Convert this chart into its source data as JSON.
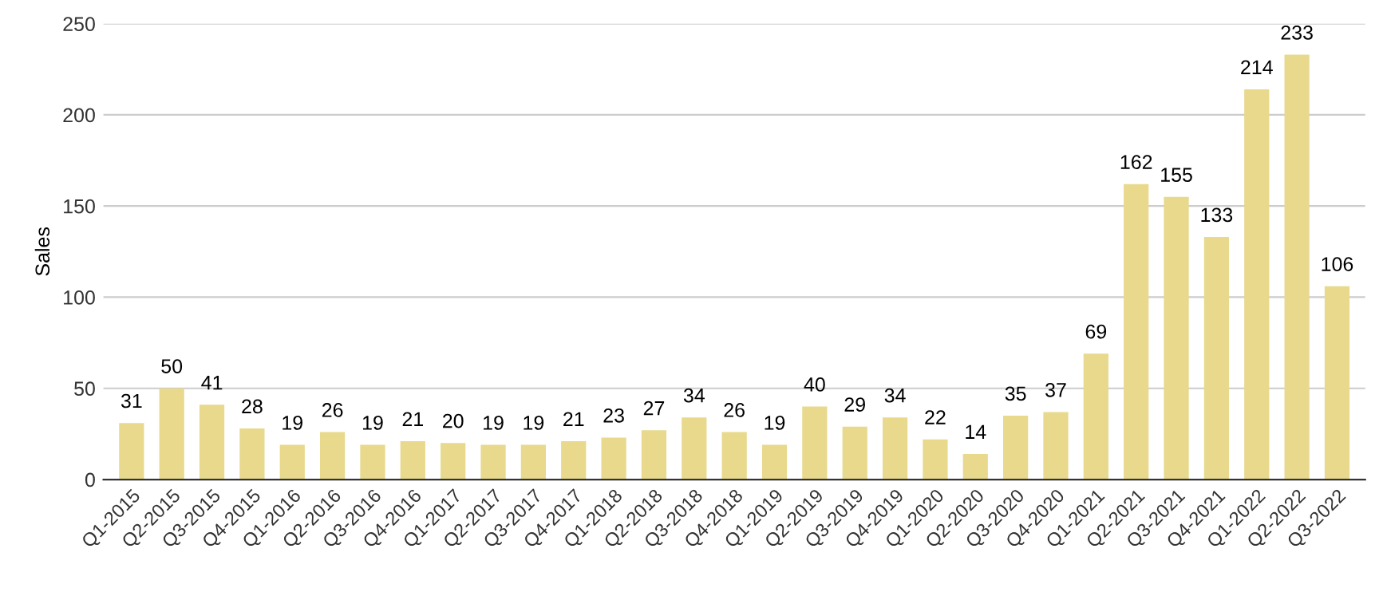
{
  "chart_data": {
    "type": "bar",
    "ylabel": "Sales",
    "categories": [
      "Q1-2015",
      "Q2-2015",
      "Q3-2015",
      "Q4-2015",
      "Q1-2016",
      "Q2-2016",
      "Q3-2016",
      "Q4-2016",
      "Q1-2017",
      "Q2-2017",
      "Q3-2017",
      "Q4-2017",
      "Q1-2018",
      "Q2-2018",
      "Q3-2018",
      "Q4-2018",
      "Q1-2019",
      "Q2-2019",
      "Q3-2019",
      "Q4-2019",
      "Q1-2020",
      "Q2-2020",
      "Q3-2020",
      "Q4-2020",
      "Q1-2021",
      "Q2-2021",
      "Q3-2021",
      "Q4-2021",
      "Q1-2022",
      "Q2-2022",
      "Q3-2022"
    ],
    "values": [
      31,
      50,
      41,
      28,
      19,
      26,
      19,
      21,
      20,
      19,
      19,
      21,
      23,
      27,
      34,
      26,
      19,
      40,
      29,
      34,
      22,
      14,
      35,
      37,
      69,
      162,
      155,
      133,
      214,
      233,
      106
    ],
    "color": "#e8d98c",
    "ylim": [
      0,
      250
    ],
    "yticks": [
      0,
      50,
      100,
      150,
      200,
      250
    ],
    "grid": "y",
    "data_labels": true,
    "legend": false
  }
}
